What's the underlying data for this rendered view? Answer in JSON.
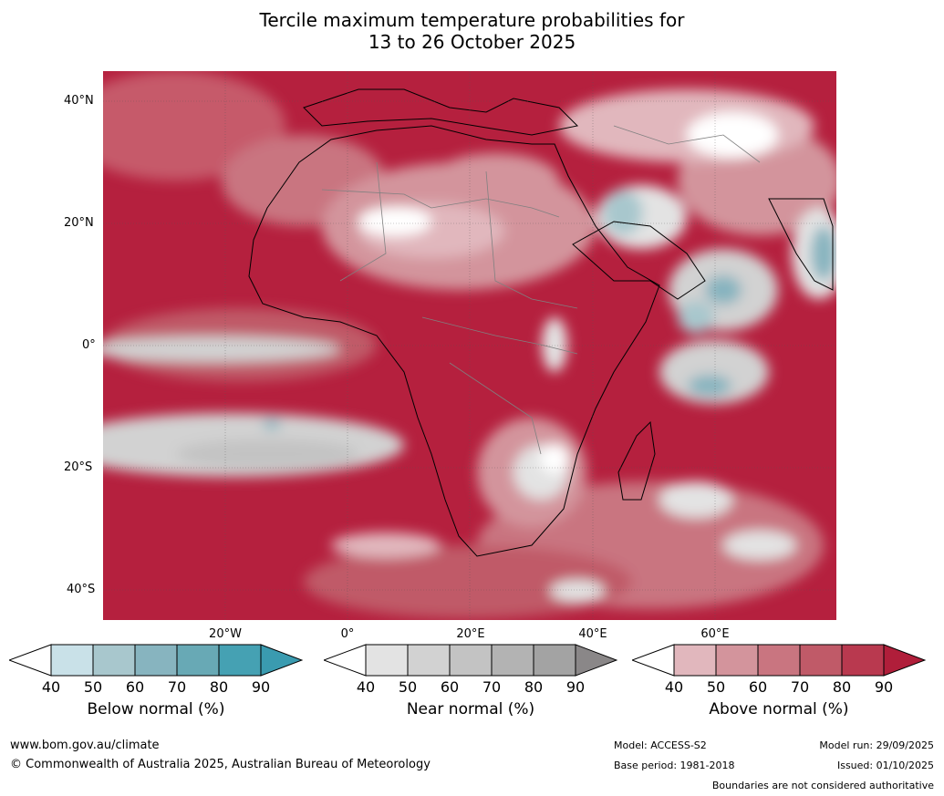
{
  "title_line1": "Tercile maximum temperature probabilities for",
  "title_line2": "13 to 26 October 2025",
  "map": {
    "lat_labels": [
      "40°N",
      "20°N",
      "0°",
      "20°S",
      "40°S"
    ],
    "lon_labels": [
      "20°W",
      "0°",
      "20°E",
      "40°E",
      "60°E"
    ]
  },
  "colorbars": [
    {
      "name": "Below normal (%)",
      "ticks": [
        "40",
        "50",
        "60",
        "70",
        "80",
        "90"
      ],
      "colors": [
        "#c9e1e8",
        "#a8c7cd",
        "#87b4bf",
        "#68a9b5",
        "#45a1b3"
      ],
      "tip": "#3a9bb0"
    },
    {
      "name": "Near normal (%)",
      "ticks": [
        "40",
        "50",
        "60",
        "70",
        "80",
        "90"
      ],
      "colors": [
        "#e3e3e3",
        "#d2d2d2",
        "#c3c3c3",
        "#b3b3b3",
        "#a3a3a3"
      ],
      "tip": "#8a8788"
    },
    {
      "name": "Above normal (%)",
      "ticks": [
        "40",
        "50",
        "60",
        "70",
        "80",
        "90"
      ],
      "colors": [
        "#e1b7bd",
        "#d3949c",
        "#c97580",
        "#c05a68",
        "#b9394f"
      ],
      "tip": "#b01e3a"
    }
  ],
  "footer": {
    "website": "www.bom.gov.au/climate",
    "copyright": "© Commonwealth of Australia 2025, Australian Bureau of Meteorology",
    "model": "Model: ACCESS-S2",
    "base_period": "Base period: 1981-2018",
    "model_run": "Model run: 29/09/2025",
    "issued": "Issued: 01/10/2025",
    "disclaimer": "Boundaries are not considered authoritative"
  }
}
